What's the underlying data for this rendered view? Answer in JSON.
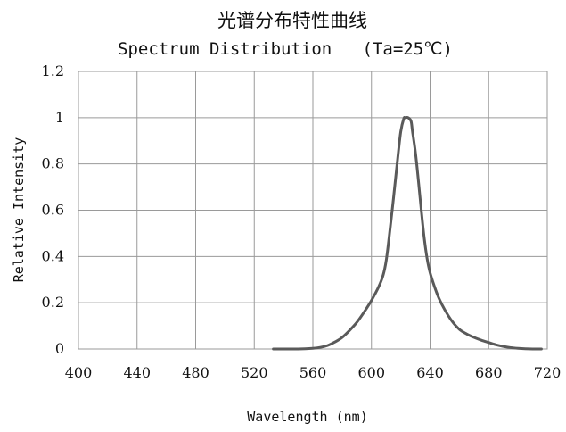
{
  "chart_data": {
    "type": "line",
    "title": "光谱分布特性曲线",
    "subtitle": "Spectrum Distribution   (Ta=25℃)",
    "xlabel": "Wavelength (nm)",
    "ylabel": "Relative Intensity",
    "xlim": [
      400,
      720
    ],
    "ylim": [
      0,
      1.2
    ],
    "x_ticks": [
      "400",
      "440",
      "480",
      "520",
      "560",
      "600",
      "640",
      "680",
      "720"
    ],
    "y_ticks": [
      "0",
      "0.2",
      "0.4",
      "0.6",
      "0.8",
      "1",
      "1.2"
    ],
    "x_tick_values": [
      400,
      440,
      480,
      520,
      560,
      600,
      640,
      680,
      720
    ],
    "y_tick_values": [
      0,
      0.2,
      0.4,
      0.6,
      0.8,
      1.0,
      1.2
    ],
    "grid": true,
    "series": [
      {
        "color": "#5a5a5a",
        "x": [
          533,
          550,
          560,
          565,
          570,
          575,
          580,
          585,
          590,
          595,
          600,
          605,
          608,
          610,
          612,
          615,
          618,
          620,
          622,
          623,
          625,
          627,
          628,
          630,
          632,
          634,
          636,
          638,
          640,
          643,
          646,
          650,
          655,
          660,
          665,
          670,
          675,
          680,
          685,
          690,
          695,
          700,
          705,
          710,
          716
        ],
        "y": [
          0.0,
          0.0,
          0.003,
          0.007,
          0.015,
          0.03,
          0.05,
          0.08,
          0.115,
          0.16,
          0.21,
          0.27,
          0.32,
          0.38,
          0.48,
          0.65,
          0.83,
          0.94,
          0.995,
          1.0,
          1.0,
          0.985,
          0.94,
          0.85,
          0.73,
          0.6,
          0.48,
          0.39,
          0.33,
          0.27,
          0.22,
          0.17,
          0.12,
          0.085,
          0.065,
          0.05,
          0.038,
          0.028,
          0.018,
          0.011,
          0.006,
          0.003,
          0.001,
          0.0,
          0.0
        ]
      }
    ]
  }
}
